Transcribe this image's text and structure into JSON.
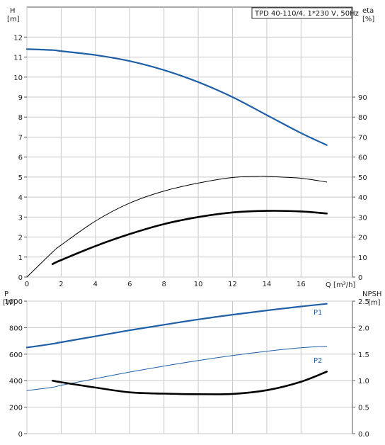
{
  "chart_data": [
    {
      "type": "line",
      "title": "TPD 40-110/4, 1*230 V, 50Hz",
      "xlabel": "Q [m³/h]",
      "x_unit_text": "Q [m³/h]",
      "x_ticks": [
        0,
        2,
        4,
        6,
        8,
        10,
        12,
        14,
        16
      ],
      "xlim": [
        0,
        19
      ],
      "left_axis": {
        "label_line1": "H",
        "label_line2": "[m]",
        "ticks": [
          0,
          1,
          2,
          3,
          4,
          5,
          6,
          7,
          8,
          9,
          10,
          11,
          12
        ],
        "ylim": [
          0,
          13.5
        ]
      },
      "right_axis": {
        "label_line1": "eta",
        "label_line2": "[%]",
        "ticks": [
          0,
          10,
          20,
          30,
          40,
          50,
          60,
          70,
          80,
          90
        ],
        "ylim": [
          0,
          135
        ]
      },
      "series": [
        {
          "axis": "left",
          "color": "#1f5fa8",
          "style": "thick",
          "x": [
            0,
            1.5,
            2,
            4,
            6,
            8,
            10,
            12,
            14,
            16,
            17.5
          ],
          "y": [
            11.4,
            11.35,
            11.3,
            11.1,
            10.8,
            10.35,
            9.75,
            9.0,
            8.1,
            7.2,
            6.6
          ]
        },
        {
          "axis": "right",
          "color": "#000000",
          "style": "thin",
          "x": [
            0,
            1.5,
            2,
            4,
            6,
            8,
            10,
            12,
            13.5,
            14,
            16,
            17.5
          ],
          "y": [
            0,
            12.5,
            16,
            28,
            37,
            43,
            47,
            49.8,
            50.3,
            50.3,
            49.4,
            47.5
          ]
        },
        {
          "axis": "right",
          "color": "#000000",
          "style": "bold",
          "x": [
            1.5,
            2,
            4,
            6,
            8,
            10,
            12,
            14,
            16,
            17.5
          ],
          "y": [
            6.5,
            8.5,
            15.5,
            21.5,
            26.5,
            30,
            32.3,
            33.1,
            32.8,
            31.8
          ]
        }
      ]
    },
    {
      "type": "line",
      "xlabel": "",
      "x_ticks": [
        0,
        2,
        4,
        6,
        8,
        10,
        12,
        14,
        16
      ],
      "xlim": [
        0,
        19
      ],
      "left_axis": {
        "label_line1": "P",
        "label_line2": "[W]",
        "ticks": [
          0,
          200,
          400,
          600,
          800,
          1000
        ],
        "ylim": [
          0,
          1000
        ]
      },
      "right_axis": {
        "label_line1": "NPSH",
        "label_line2": "[m]",
        "ticks": [
          "0.0",
          "0.5",
          "1.0",
          "1.5",
          "2.0",
          "2.5"
        ],
        "ylim": [
          0,
          2.5
        ]
      },
      "series": [
        {
          "name": "P1",
          "axis": "left",
          "color": "#1f5fa8",
          "style": "thick",
          "x": [
            0,
            1.5,
            2,
            4,
            6,
            8,
            10,
            12,
            14,
            16,
            17.5
          ],
          "y": [
            650,
            678,
            690,
            735,
            780,
            822,
            862,
            898,
            930,
            960,
            980
          ]
        },
        {
          "name": "P2",
          "axis": "left",
          "color": "#1f5fa8",
          "style": "thin",
          "x": [
            0,
            1.5,
            2,
            4,
            6,
            8,
            10,
            12,
            14,
            16,
            17.5
          ],
          "y": [
            325,
            350,
            365,
            415,
            465,
            510,
            552,
            590,
            622,
            648,
            660
          ]
        },
        {
          "axis": "right",
          "color": "#000000",
          "style": "bold",
          "x": [
            1.5,
            2,
            4,
            6,
            8,
            10,
            12,
            14,
            16,
            17.5
          ],
          "y": [
            1.0,
            0.97,
            0.87,
            0.78,
            0.755,
            0.745,
            0.75,
            0.82,
            0.98,
            1.17
          ]
        }
      ]
    }
  ]
}
